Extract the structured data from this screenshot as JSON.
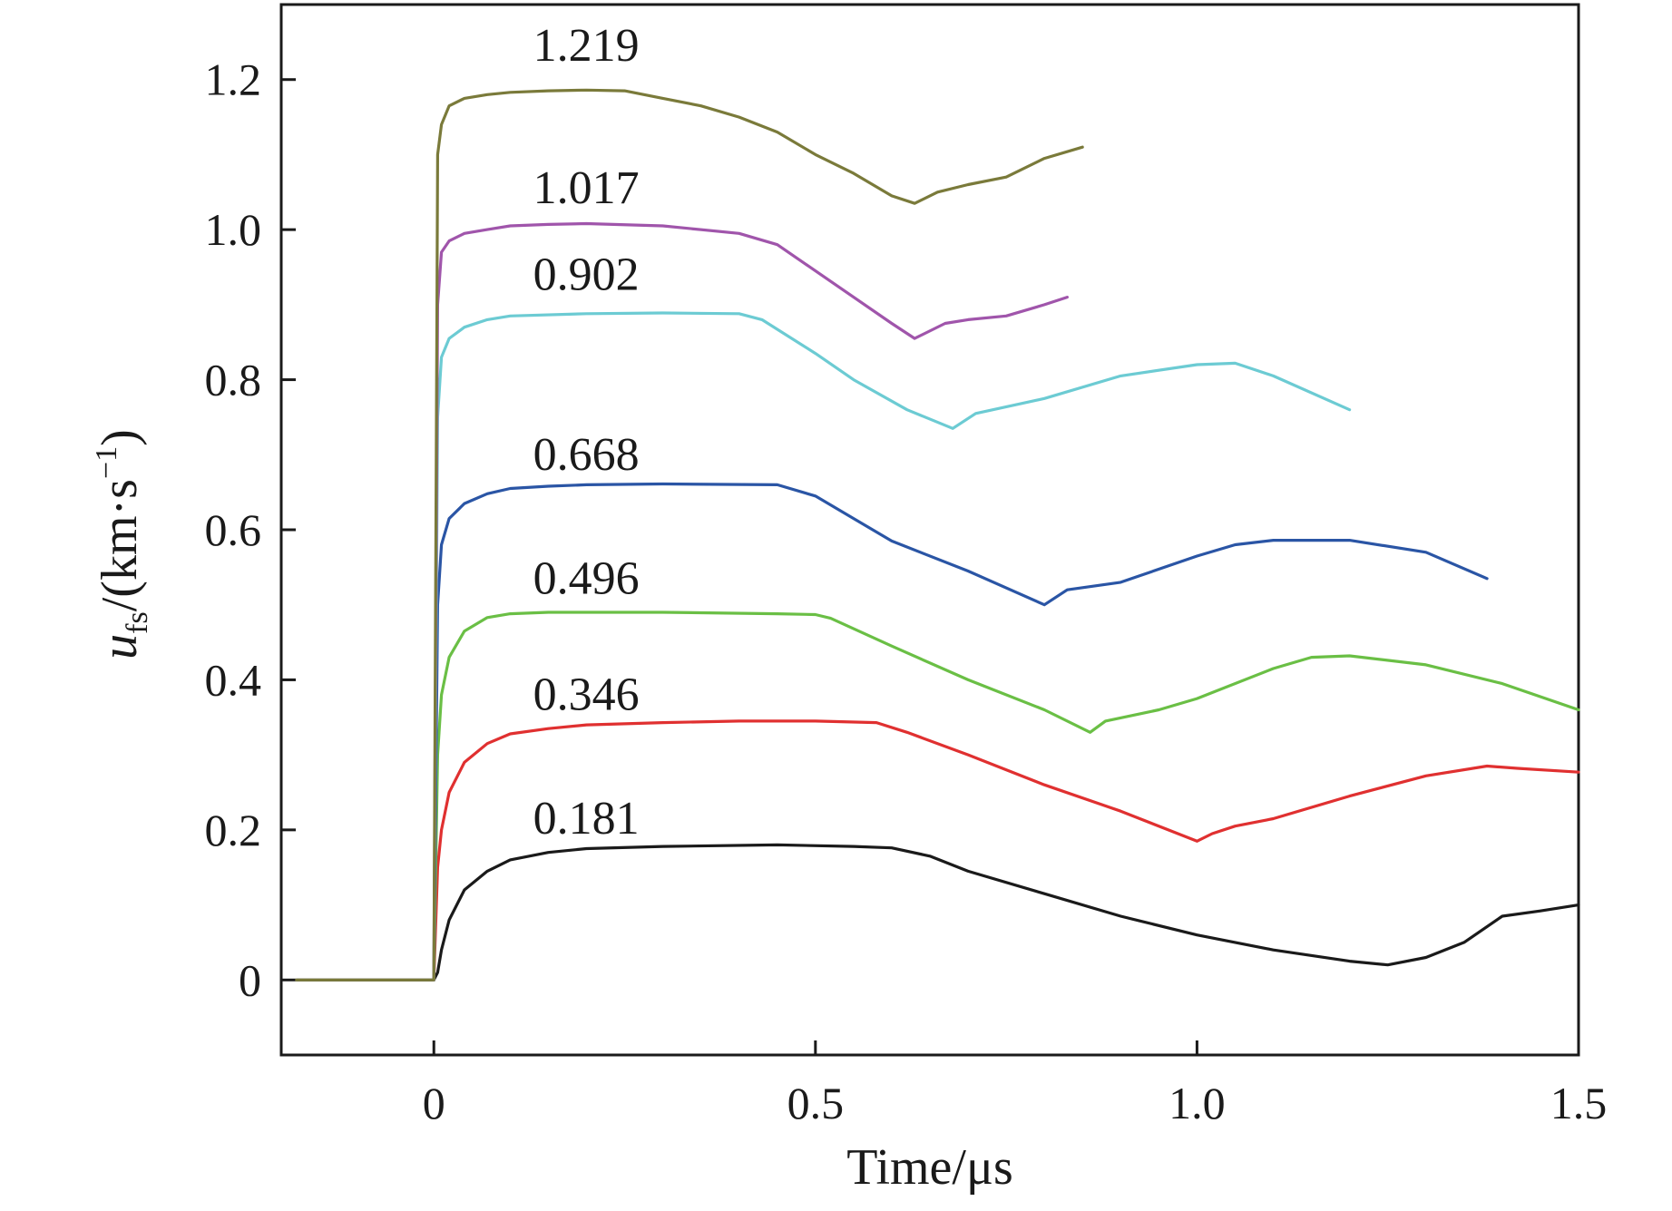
{
  "chart_data": {
    "type": "line",
    "title": "",
    "xlabel": "Time/μs",
    "ylabel": {
      "var": "u",
      "sub": "fs",
      "unit_open": "/(km·s",
      "sup": "−1",
      "unit_close": ")"
    },
    "xlim": [
      -0.2,
      1.5
    ],
    "ylim": [
      -0.1,
      1.3
    ],
    "x_ticks": [
      0,
      0.5,
      1.0,
      1.5
    ],
    "x_tick_labels": [
      "0",
      "0.5",
      "1.0",
      "1.5"
    ],
    "y_ticks": [
      0,
      0.2,
      0.4,
      0.6,
      0.8,
      1.0,
      1.2
    ],
    "y_tick_labels": [
      "0",
      "0.2",
      "0.4",
      "0.6",
      "0.8",
      "1.0",
      "1.2"
    ],
    "grid": false,
    "series": [
      {
        "name": "0.181",
        "color": "#1a1a1a",
        "label_at": [
          0.13,
          0.195
        ],
        "points": [
          [
            -0.18,
            0
          ],
          [
            0,
            0
          ],
          [
            0.005,
            0.01
          ],
          [
            0.01,
            0.04
          ],
          [
            0.02,
            0.08
          ],
          [
            0.04,
            0.12
          ],
          [
            0.07,
            0.145
          ],
          [
            0.1,
            0.16
          ],
          [
            0.15,
            0.17
          ],
          [
            0.2,
            0.175
          ],
          [
            0.3,
            0.178
          ],
          [
            0.45,
            0.18
          ],
          [
            0.55,
            0.178
          ],
          [
            0.6,
            0.176
          ],
          [
            0.65,
            0.165
          ],
          [
            0.7,
            0.145
          ],
          [
            0.8,
            0.115
          ],
          [
            0.9,
            0.085
          ],
          [
            1.0,
            0.06
          ],
          [
            1.1,
            0.04
          ],
          [
            1.2,
            0.025
          ],
          [
            1.25,
            0.02
          ],
          [
            1.3,
            0.03
          ],
          [
            1.35,
            0.05
          ],
          [
            1.4,
            0.085
          ],
          [
            1.45,
            0.092
          ],
          [
            1.5,
            0.1
          ]
        ]
      },
      {
        "name": "0.346",
        "color": "#e03030",
        "label_at": [
          0.13,
          0.36
        ],
        "points": [
          [
            0,
            0
          ],
          [
            0.005,
            0.15
          ],
          [
            0.01,
            0.2
          ],
          [
            0.02,
            0.25
          ],
          [
            0.04,
            0.29
          ],
          [
            0.07,
            0.315
          ],
          [
            0.1,
            0.328
          ],
          [
            0.15,
            0.335
          ],
          [
            0.2,
            0.34
          ],
          [
            0.3,
            0.343
          ],
          [
            0.4,
            0.345
          ],
          [
            0.5,
            0.345
          ],
          [
            0.58,
            0.343
          ],
          [
            0.62,
            0.33
          ],
          [
            0.7,
            0.3
          ],
          [
            0.8,
            0.26
          ],
          [
            0.9,
            0.225
          ],
          [
            1.0,
            0.185
          ],
          [
            1.02,
            0.195
          ],
          [
            1.05,
            0.205
          ],
          [
            1.1,
            0.215
          ],
          [
            1.2,
            0.245
          ],
          [
            1.3,
            0.272
          ],
          [
            1.38,
            0.285
          ],
          [
            1.42,
            0.282
          ],
          [
            1.5,
            0.277
          ]
        ]
      },
      {
        "name": "0.496",
        "color": "#6abf45",
        "label_at": [
          0.13,
          0.515
        ],
        "points": [
          [
            0,
            0
          ],
          [
            0.005,
            0.3
          ],
          [
            0.01,
            0.38
          ],
          [
            0.02,
            0.43
          ],
          [
            0.04,
            0.465
          ],
          [
            0.07,
            0.483
          ],
          [
            0.1,
            0.488
          ],
          [
            0.15,
            0.49
          ],
          [
            0.3,
            0.49
          ],
          [
            0.45,
            0.488
          ],
          [
            0.5,
            0.487
          ],
          [
            0.52,
            0.482
          ],
          [
            0.6,
            0.445
          ],
          [
            0.7,
            0.4
          ],
          [
            0.8,
            0.36
          ],
          [
            0.86,
            0.33
          ],
          [
            0.88,
            0.345
          ],
          [
            0.95,
            0.36
          ],
          [
            1.0,
            0.375
          ],
          [
            1.1,
            0.415
          ],
          [
            1.15,
            0.43
          ],
          [
            1.2,
            0.432
          ],
          [
            1.3,
            0.42
          ],
          [
            1.4,
            0.395
          ],
          [
            1.5,
            0.36
          ]
        ]
      },
      {
        "name": "0.668",
        "color": "#2a55a5",
        "label_at": [
          0.13,
          0.68
        ],
        "points": [
          [
            0,
            0
          ],
          [
            0.005,
            0.5
          ],
          [
            0.01,
            0.58
          ],
          [
            0.02,
            0.615
          ],
          [
            0.04,
            0.635
          ],
          [
            0.07,
            0.648
          ],
          [
            0.1,
            0.655
          ],
          [
            0.15,
            0.658
          ],
          [
            0.2,
            0.66
          ],
          [
            0.3,
            0.661
          ],
          [
            0.45,
            0.66
          ],
          [
            0.5,
            0.645
          ],
          [
            0.55,
            0.615
          ],
          [
            0.6,
            0.585
          ],
          [
            0.7,
            0.545
          ],
          [
            0.8,
            0.5
          ],
          [
            0.83,
            0.52
          ],
          [
            0.9,
            0.53
          ],
          [
            1.0,
            0.565
          ],
          [
            1.05,
            0.58
          ],
          [
            1.1,
            0.586
          ],
          [
            1.2,
            0.586
          ],
          [
            1.3,
            0.57
          ],
          [
            1.38,
            0.535
          ]
        ]
      },
      {
        "name": "0.902",
        "color": "#6ccbd3",
        "label_at": [
          0.13,
          0.92
        ],
        "points": [
          [
            0,
            0
          ],
          [
            0.005,
            0.75
          ],
          [
            0.01,
            0.83
          ],
          [
            0.02,
            0.855
          ],
          [
            0.04,
            0.87
          ],
          [
            0.07,
            0.88
          ],
          [
            0.1,
            0.885
          ],
          [
            0.2,
            0.888
          ],
          [
            0.3,
            0.889
          ],
          [
            0.4,
            0.888
          ],
          [
            0.43,
            0.88
          ],
          [
            0.5,
            0.835
          ],
          [
            0.55,
            0.8
          ],
          [
            0.62,
            0.76
          ],
          [
            0.68,
            0.735
          ],
          [
            0.71,
            0.755
          ],
          [
            0.8,
            0.775
          ],
          [
            0.9,
            0.805
          ],
          [
            1.0,
            0.82
          ],
          [
            1.05,
            0.822
          ],
          [
            1.1,
            0.805
          ],
          [
            1.2,
            0.76
          ]
        ]
      },
      {
        "name": "1.017",
        "color": "#a055ab",
        "label_at": [
          0.13,
          1.035
        ],
        "points": [
          [
            0,
            0
          ],
          [
            0.005,
            0.9
          ],
          [
            0.01,
            0.97
          ],
          [
            0.02,
            0.985
          ],
          [
            0.04,
            0.995
          ],
          [
            0.07,
            1.0
          ],
          [
            0.1,
            1.005
          ],
          [
            0.15,
            1.007
          ],
          [
            0.2,
            1.008
          ],
          [
            0.3,
            1.005
          ],
          [
            0.4,
            0.995
          ],
          [
            0.45,
            0.98
          ],
          [
            0.5,
            0.945
          ],
          [
            0.55,
            0.91
          ],
          [
            0.6,
            0.875
          ],
          [
            0.63,
            0.855
          ],
          [
            0.67,
            0.875
          ],
          [
            0.7,
            0.88
          ],
          [
            0.75,
            0.885
          ],
          [
            0.8,
            0.9
          ],
          [
            0.83,
            0.91
          ]
        ]
      },
      {
        "name": "1.219",
        "color": "#7a7a3a",
        "label_at": [
          0.13,
          1.225
        ],
        "points": [
          [
            -0.18,
            0
          ],
          [
            0,
            0
          ],
          [
            0.005,
            1.1
          ],
          [
            0.01,
            1.14
          ],
          [
            0.02,
            1.165
          ],
          [
            0.04,
            1.175
          ],
          [
            0.07,
            1.18
          ],
          [
            0.1,
            1.183
          ],
          [
            0.15,
            1.185
          ],
          [
            0.2,
            1.186
          ],
          [
            0.25,
            1.185
          ],
          [
            0.3,
            1.175
          ],
          [
            0.35,
            1.165
          ],
          [
            0.4,
            1.15
          ],
          [
            0.45,
            1.13
          ],
          [
            0.5,
            1.1
          ],
          [
            0.55,
            1.075
          ],
          [
            0.6,
            1.045
          ],
          [
            0.63,
            1.035
          ],
          [
            0.66,
            1.05
          ],
          [
            0.7,
            1.06
          ],
          [
            0.75,
            1.07
          ],
          [
            0.8,
            1.095
          ],
          [
            0.85,
            1.11
          ]
        ]
      }
    ]
  }
}
